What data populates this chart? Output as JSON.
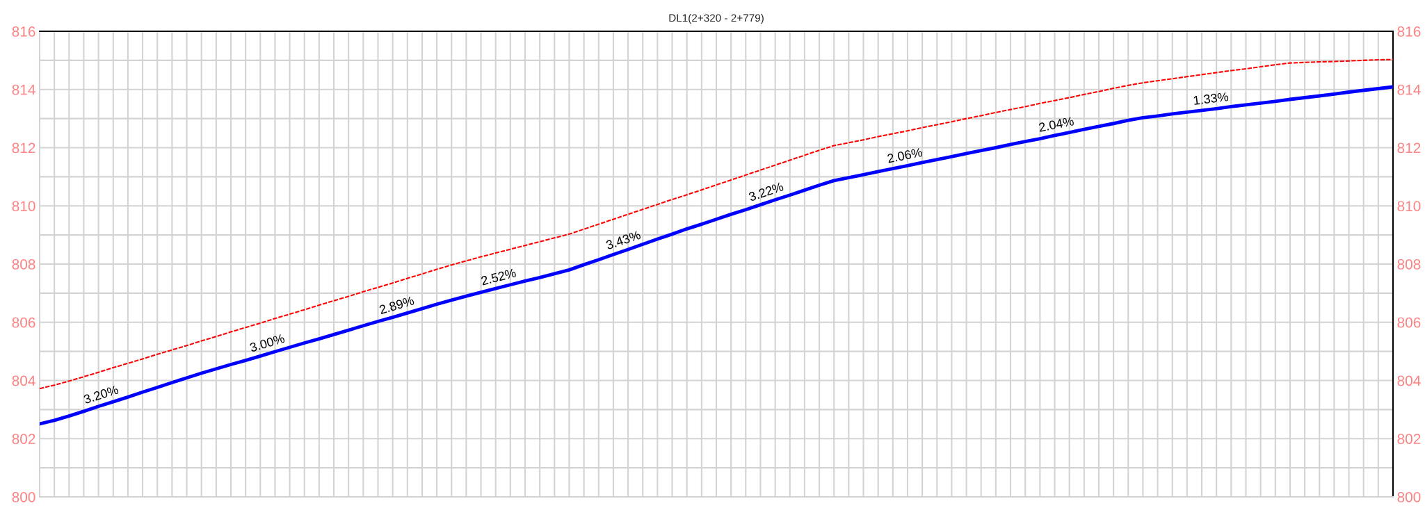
{
  "chart_data": {
    "type": "line",
    "title": "DL1(2+320 - 2+779)",
    "categories": [
      null,
      null,
      null,
      null,
      null,
      null,
      null,
      null,
      null,
      null,
      null,
      null,
      null,
      null,
      null,
      null,
      null,
      null,
      null,
      null,
      null,
      null,
      null,
      null,
      null,
      null,
      null,
      null,
      null,
      null,
      null,
      null,
      null,
      null,
      null,
      null,
      null,
      null,
      null,
      null,
      null,
      null,
      null,
      null,
      null,
      null,
      null,
      null,
      null,
      null,
      null,
      null,
      null,
      null,
      null,
      null,
      null,
      null,
      null,
      null,
      null,
      null,
      null,
      null,
      null,
      null,
      null,
      null,
      null,
      null,
      null,
      null,
      null,
      null,
      null,
      null,
      null,
      null,
      null,
      null,
      null,
      null,
      null,
      null,
      null,
      null,
      null,
      null,
      null,
      null,
      null,
      null,
      null
    ],
    "series": [
      {
        "color": "#ff0000",
        "line_style": "dashed",
        "values": [
          803.72,
          803.84,
          803.98,
          804.13,
          804.28,
          804.44,
          804.59,
          804.74,
          804.9,
          805.05,
          805.2,
          805.36,
          805.51,
          805.67,
          805.82,
          805.97,
          806.13,
          806.28,
          806.43,
          806.59,
          806.74,
          806.89,
          807.05,
          807.2,
          807.35,
          807.51,
          807.66,
          807.82,
          807.97,
          808.11,
          808.25,
          808.38,
          808.51,
          808.64,
          808.77,
          808.9,
          809.03,
          809.2,
          809.37,
          809.54,
          809.71,
          809.88,
          810.05,
          810.22,
          810.38,
          810.55,
          810.72,
          810.89,
          811.06,
          811.23,
          811.4,
          811.57,
          811.74,
          811.91,
          812.07,
          812.17,
          812.27,
          812.38,
          812.48,
          812.58,
          812.69,
          812.79,
          812.89,
          813.0,
          813.1,
          813.21,
          813.31,
          813.41,
          813.52,
          813.62,
          813.72,
          813.83,
          813.93,
          814.04,
          814.14,
          814.23,
          814.3,
          814.37,
          814.44,
          814.51,
          814.58,
          814.65,
          814.71,
          814.78,
          814.85,
          814.91,
          814.93,
          814.95,
          814.96,
          814.98,
          815.0,
          815.02,
          815.03
        ]
      },
      {
        "color": "#0000ff",
        "line_style": "solid",
        "values": [
          802.51,
          802.63,
          802.78,
          802.94,
          803.11,
          803.27,
          803.43,
          803.6,
          803.76,
          803.93,
          804.09,
          804.25,
          804.4,
          804.55,
          804.69,
          804.84,
          804.99,
          805.14,
          805.29,
          805.43,
          805.58,
          805.73,
          805.88,
          806.03,
          806.17,
          806.32,
          806.47,
          806.62,
          806.76,
          806.9,
          807.03,
          807.16,
          807.29,
          807.42,
          807.54,
          807.67,
          807.8,
          807.98,
          808.15,
          808.33,
          808.5,
          808.68,
          808.86,
          809.03,
          809.21,
          809.37,
          809.54,
          809.71,
          809.87,
          810.04,
          810.21,
          810.37,
          810.54,
          810.71,
          810.87,
          810.97,
          811.07,
          811.18,
          811.28,
          811.38,
          811.49,
          811.59,
          811.69,
          811.8,
          811.9,
          812.0,
          812.11,
          812.21,
          812.31,
          812.42,
          812.52,
          812.63,
          812.73,
          812.83,
          812.94,
          813.03,
          813.09,
          813.16,
          813.22,
          813.28,
          813.34,
          813.41,
          813.47,
          813.53,
          813.59,
          813.66,
          813.72,
          813.78,
          813.84,
          813.91,
          813.97,
          814.03,
          814.09
        ]
      }
    ],
    "annotations": [
      {
        "text": "3.20%",
        "y": 803.16
      },
      {
        "text": "3.00%",
        "y": 804.93
      },
      {
        "text": "2.89%",
        "y": 806.23
      },
      {
        "text": "2.52%",
        "y": 807.2
      },
      {
        "text": "3.43%",
        "y": 808.47
      },
      {
        "text": "3.22%",
        "y": 810.13
      },
      {
        "text": "2.06%",
        "y": 811.37
      },
      {
        "text": "2.04%",
        "y": 812.44
      },
      {
        "text": "1.33%",
        "y": 813.32
      }
    ],
    "ylim": [
      800,
      816
    ],
    "yticks": [
      800,
      {
        "value": 801,
        "label": null
      },
      802,
      {
        "value": 803,
        "label": null
      },
      804,
      {
        "value": 805,
        "label": null
      },
      806,
      {
        "value": 807,
        "label": null
      },
      808,
      {
        "value": 809,
        "label": null
      },
      810,
      {
        "value": 811,
        "label": null
      },
      812,
      {
        "value": 813,
        "label": null
      },
      814,
      {
        "value": 815,
        "label": null
      },
      816
    ],
    "y2lim": [
      800,
      816
    ],
    "y2ticks": [
      800,
      802,
      804,
      806,
      808,
      810,
      812,
      814,
      816
    ],
    "tick_labels": "y",
    "grid": true,
    "marker": "none"
  }
}
